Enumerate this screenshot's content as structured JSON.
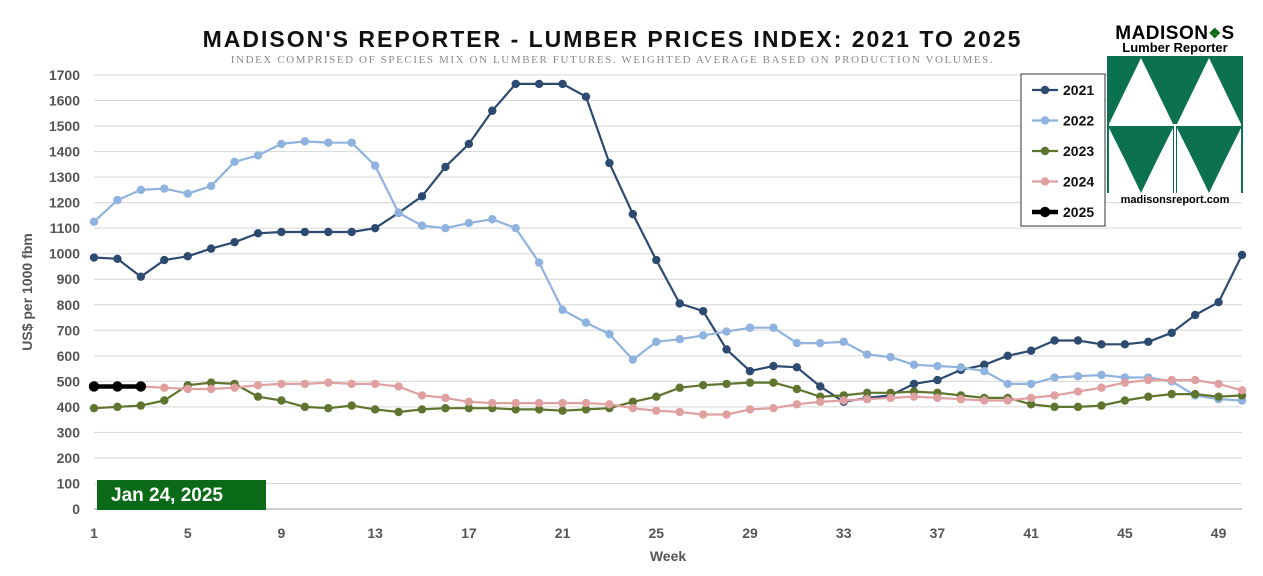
{
  "chart_data": {
    "type": "line",
    "title": "MADISON'S REPORTER - LUMBER PRICES INDEX: 2021 TO 2025",
    "subtitle": "INDEX COMPRISED OF SPECIES MIX ON LUMBER FUTURES. WEIGHTED AVERAGE BASED ON PRODUCTION VOLUMES.",
    "xlabel": "Week",
    "ylabel": "US$ per 1000 fbm",
    "xlim": [
      1,
      50
    ],
    "ylim": [
      0,
      1700
    ],
    "x_ticks": [
      1,
      5,
      9,
      13,
      17,
      21,
      25,
      29,
      33,
      37,
      41,
      45,
      49
    ],
    "y_ticks": [
      0,
      100,
      200,
      300,
      400,
      500,
      600,
      700,
      800,
      900,
      1000,
      1100,
      1200,
      1300,
      1400,
      1500,
      1600,
      1700
    ],
    "grid": "horizontal",
    "legend_position": "top-right",
    "series": [
      {
        "name": "2021",
        "color": "#2d4a70",
        "width": 2.2,
        "x": [
          1,
          2,
          3,
          4,
          5,
          6,
          7,
          8,
          9,
          10,
          11,
          12,
          13,
          14,
          15,
          16,
          17,
          18,
          19,
          20,
          21,
          22,
          23,
          24,
          25,
          26,
          27,
          28,
          29,
          30,
          31,
          32,
          33,
          34,
          35,
          36,
          37,
          38,
          39,
          40,
          41,
          42,
          43,
          44,
          45,
          46,
          47,
          48,
          49,
          50
        ],
        "values": [
          985,
          980,
          910,
          975,
          990,
          1020,
          1045,
          1080,
          1085,
          1085,
          1085,
          1085,
          1100,
          1160,
          1225,
          1340,
          1430,
          1560,
          1665,
          1665,
          1665,
          1615,
          1355,
          1155,
          975,
          805,
          775,
          625,
          540,
          560,
          555,
          480,
          420,
          435,
          445,
          490,
          505,
          545,
          565,
          600,
          620,
          660,
          660,
          645,
          645,
          655,
          690,
          760,
          810,
          995
        ]
      },
      {
        "name": "2022",
        "color": "#8fb3de",
        "width": 2.2,
        "x": [
          1,
          2,
          3,
          4,
          5,
          6,
          7,
          8,
          9,
          10,
          11,
          12,
          13,
          14,
          15,
          16,
          17,
          18,
          19,
          20,
          21,
          22,
          23,
          24,
          25,
          26,
          27,
          28,
          29,
          30,
          31,
          32,
          33,
          34,
          35,
          36,
          37,
          38,
          39,
          40,
          41,
          42,
          43,
          44,
          45,
          46,
          47,
          48,
          49,
          50
        ],
        "values": [
          1125,
          1210,
          1250,
          1255,
          1235,
          1265,
          1360,
          1385,
          1430,
          1440,
          1435,
          1435,
          1345,
          1160,
          1110,
          1100,
          1120,
          1135,
          1100,
          965,
          780,
          730,
          685,
          585,
          655,
          665,
          680,
          695,
          710,
          710,
          650,
          650,
          655,
          605,
          595,
          565,
          560,
          555,
          540,
          490,
          490,
          515,
          520,
          525,
          515,
          515,
          500,
          445,
          430,
          425
        ]
      },
      {
        "name": "2023",
        "color": "#5f752f",
        "width": 2.2,
        "x": [
          1,
          2,
          3,
          4,
          5,
          6,
          7,
          8,
          9,
          10,
          11,
          12,
          13,
          14,
          15,
          16,
          17,
          18,
          19,
          20,
          21,
          22,
          23,
          24,
          25,
          26,
          27,
          28,
          29,
          30,
          31,
          32,
          33,
          34,
          35,
          36,
          37,
          38,
          39,
          40,
          41,
          42,
          43,
          44,
          45,
          46,
          47,
          48,
          49,
          50
        ],
        "values": [
          395,
          400,
          405,
          425,
          485,
          495,
          490,
          440,
          425,
          400,
          395,
          405,
          390,
          380,
          390,
          395,
          395,
          395,
          390,
          390,
          385,
          390,
          395,
          420,
          440,
          475,
          485,
          490,
          495,
          495,
          470,
          440,
          445,
          455,
          455,
          460,
          455,
          445,
          435,
          435,
          410,
          400,
          400,
          405,
          425,
          440,
          450,
          450,
          440,
          445
        ]
      },
      {
        "name": "2024",
        "color": "#e0a0a0",
        "width": 2.2,
        "x": [
          1,
          2,
          3,
          4,
          5,
          6,
          7,
          8,
          9,
          10,
          11,
          12,
          13,
          14,
          15,
          16,
          17,
          18,
          19,
          20,
          21,
          22,
          23,
          24,
          25,
          26,
          27,
          28,
          29,
          30,
          31,
          32,
          33,
          34,
          35,
          36,
          37,
          38,
          39,
          40,
          41,
          42,
          43,
          44,
          45,
          46,
          47,
          48,
          49,
          50
        ],
        "values": [
          480,
          480,
          480,
          475,
          470,
          470,
          475,
          485,
          490,
          490,
          495,
          490,
          490,
          480,
          445,
          435,
          420,
          415,
          415,
          415,
          415,
          415,
          410,
          395,
          385,
          380,
          370,
          370,
          390,
          395,
          410,
          420,
          425,
          430,
          435,
          440,
          435,
          430,
          425,
          425,
          435,
          445,
          460,
          475,
          495,
          505,
          505,
          505,
          490,
          465
        ]
      },
      {
        "name": "2025",
        "color": "#000000",
        "width": 4.5,
        "x": [
          1,
          2,
          3
        ],
        "values": [
          480,
          480,
          480
        ]
      }
    ],
    "annotation": "Jan 24, 2025"
  },
  "logo": {
    "name_part1": "MADISON",
    "name_part2": "S",
    "subtitle": "Lumber Reporter",
    "url": "madisonsreport.com"
  }
}
